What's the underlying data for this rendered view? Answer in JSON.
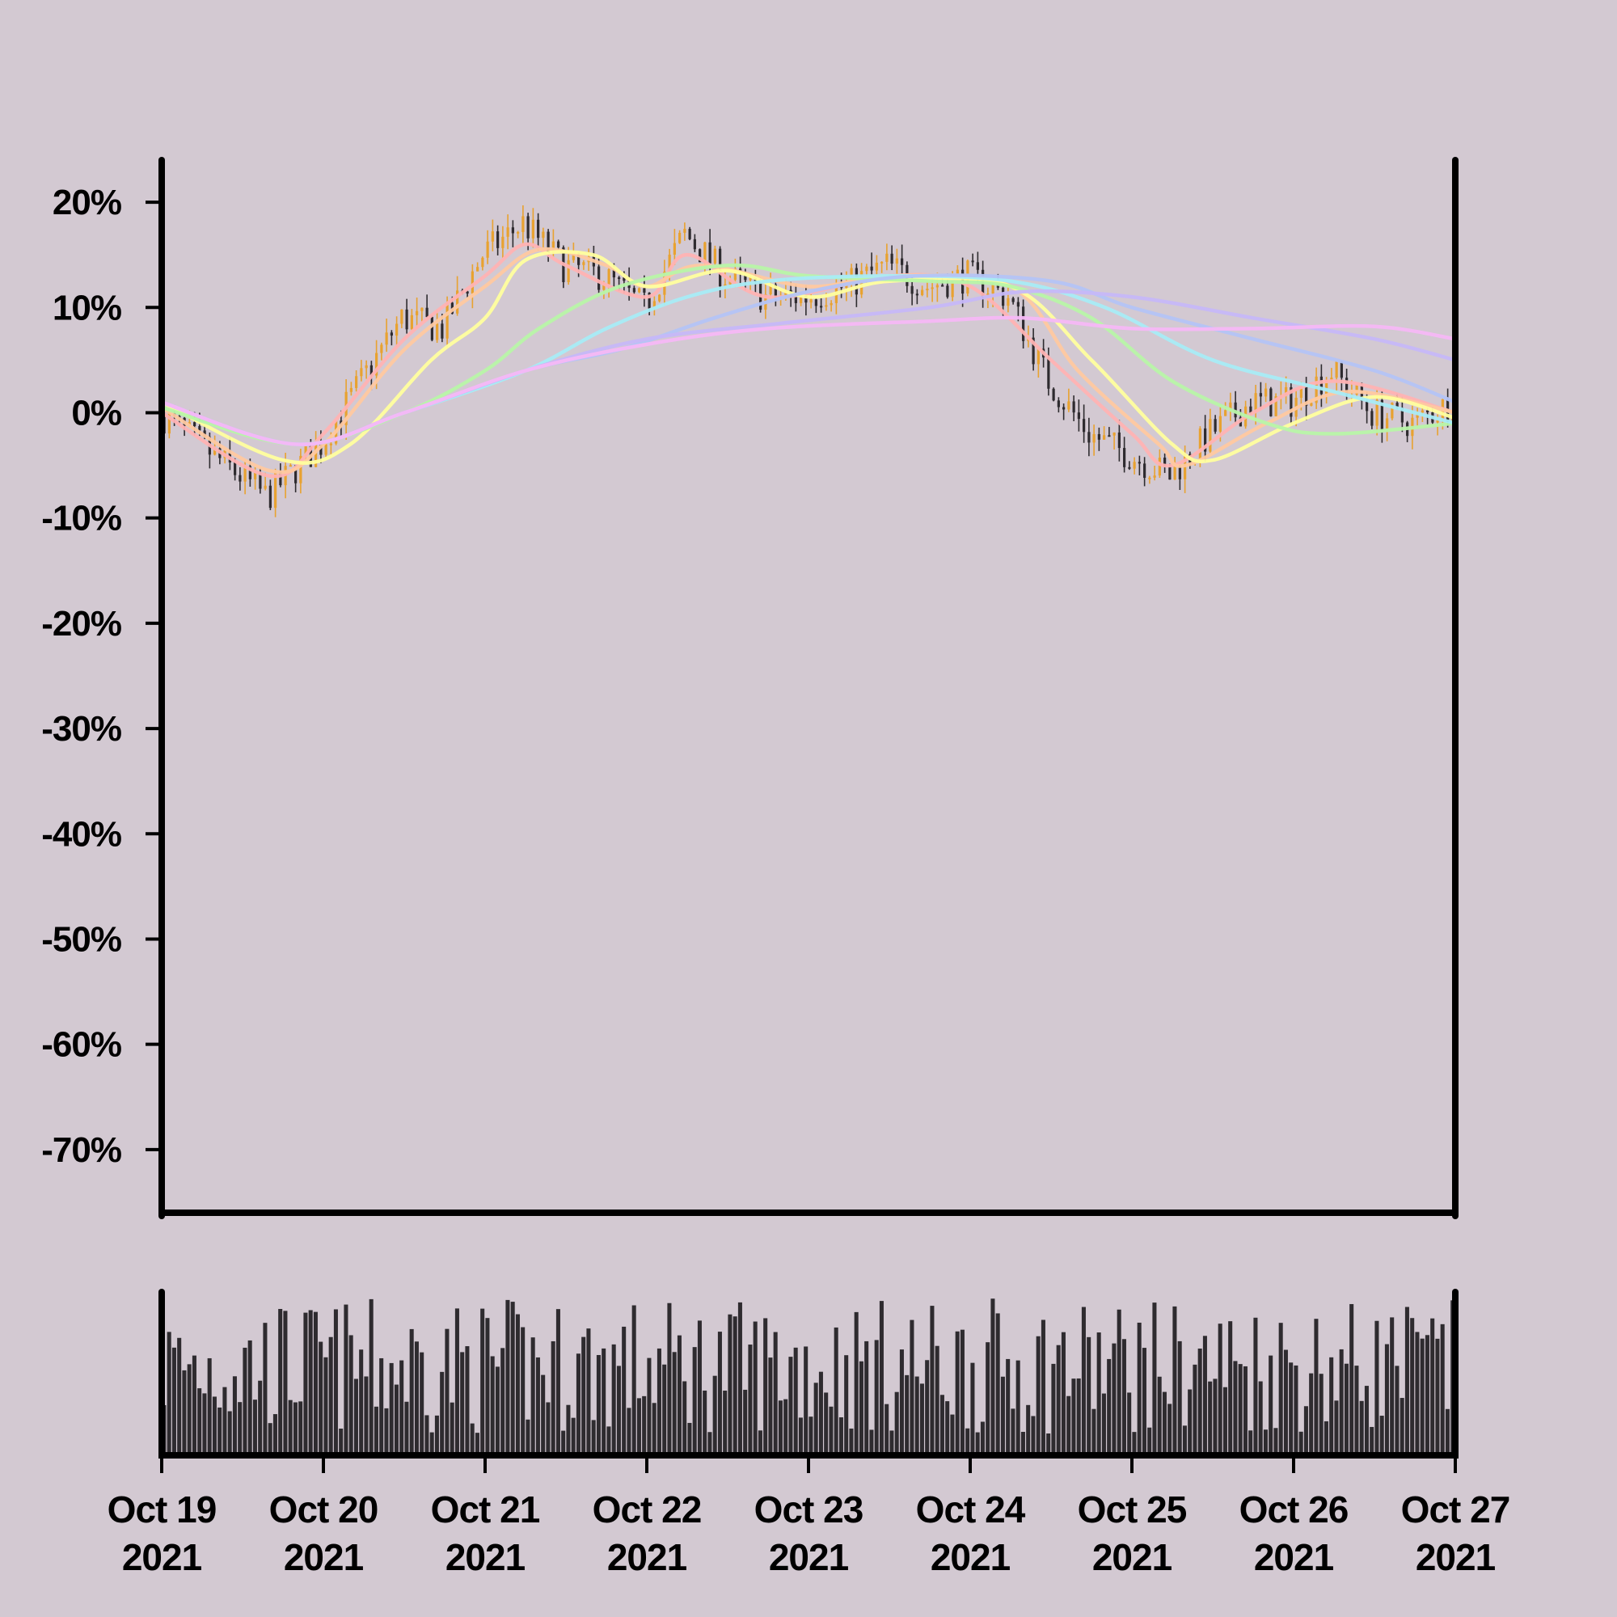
{
  "chart_data": {
    "type": "candlestick",
    "background": "#d3c9d2",
    "up_color": "#e8a230",
    "down_color": "#2e2b2f",
    "volume_color": "#2e2b2f",
    "ylim": [
      -76,
      24
    ],
    "y_ticks": [
      20,
      10,
      0,
      -10,
      -20,
      -30,
      -40,
      -50,
      -60,
      -70
    ],
    "y_tick_labels": [
      "20%",
      "10%",
      "0%",
      "-10%",
      "-20%",
      "-30%",
      "-40%",
      "-50%",
      "-60%",
      "-70%"
    ],
    "xlim": [
      "2021-10-19",
      "2021-10-27"
    ],
    "x_ticks": [
      {
        "date": "2021-10-19",
        "line1": "Oct 19",
        "line2": "2021"
      },
      {
        "date": "2021-10-20",
        "line1": "Oct 20",
        "line2": "2021"
      },
      {
        "date": "2021-10-21",
        "line1": "Oct 21",
        "line2": "2021"
      },
      {
        "date": "2021-10-22",
        "line1": "Oct 22",
        "line2": "2021"
      },
      {
        "date": "2021-10-23",
        "line1": "Oct 23",
        "line2": "2021"
      },
      {
        "date": "2021-10-24",
        "line1": "Oct 24",
        "line2": "2021"
      },
      {
        "date": "2021-10-25",
        "line1": "Oct 25",
        "line2": "2021"
      },
      {
        "date": "2021-10-26",
        "line1": "Oct 26",
        "line2": "2021"
      },
      {
        "date": "2021-10-27",
        "line1": "Oct 27",
        "line2": "2021"
      }
    ],
    "price_path": [
      [
        "2021-10-19T00:00",
        0
      ],
      [
        "2021-10-19T14:00",
        -7
      ],
      [
        "2021-10-19T16:00",
        -8
      ],
      [
        "2021-10-20T00:00",
        -3
      ],
      [
        "2021-10-20T06:00",
        3
      ],
      [
        "2021-10-20T12:00",
        9
      ],
      [
        "2021-10-20T18:00",
        8
      ],
      [
        "2021-10-21T00:00",
        15
      ],
      [
        "2021-10-21T06:00",
        18
      ],
      [
        "2021-10-21T12:00",
        14
      ],
      [
        "2021-10-21T18:00",
        13
      ],
      [
        "2021-10-22T00:00",
        10
      ],
      [
        "2021-10-22T06:00",
        17
      ],
      [
        "2021-10-22T12:00",
        13
      ],
      [
        "2021-10-22T18:00",
        11
      ],
      [
        "2021-10-23T00:00",
        11
      ],
      [
        "2021-10-23T06:00",
        12
      ],
      [
        "2021-10-23T12:00",
        14
      ],
      [
        "2021-10-23T18:00",
        12
      ],
      [
        "2021-10-24T00:00",
        13
      ],
      [
        "2021-10-24T06:00",
        11
      ],
      [
        "2021-10-24T12:00",
        3
      ],
      [
        "2021-10-24T18:00",
        -2
      ],
      [
        "2021-10-25T00:00",
        -4
      ],
      [
        "2021-10-25T06:00",
        -6
      ],
      [
        "2021-10-25T12:00",
        -2
      ],
      [
        "2021-10-25T18:00",
        1
      ],
      [
        "2021-10-26T00:00",
        1
      ],
      [
        "2021-10-26T06:00",
        4
      ],
      [
        "2021-10-26T12:00",
        0
      ],
      [
        "2021-10-26T18:00",
        -1
      ],
      [
        "2021-10-27T00:00",
        1
      ]
    ],
    "moving_averages": [
      {
        "color": "#ffb3b3",
        "opacity": 0.95,
        "points": [
          [
            "2021-10-19T00:00",
            0
          ],
          [
            "2021-10-19T16:00",
            -6
          ],
          [
            "2021-10-20T00:00",
            -2
          ],
          [
            "2021-10-20T12:00",
            7
          ],
          [
            "2021-10-21T00:00",
            13
          ],
          [
            "2021-10-21T06:00",
            16
          ],
          [
            "2021-10-21T12:00",
            14
          ],
          [
            "2021-10-22T00:00",
            11
          ],
          [
            "2021-10-22T06:00",
            15
          ],
          [
            "2021-10-22T18:00",
            11
          ],
          [
            "2021-10-23T12:00",
            13
          ],
          [
            "2021-10-24T00:00",
            12
          ],
          [
            "2021-10-24T12:00",
            5
          ],
          [
            "2021-10-25T00:00",
            -2
          ],
          [
            "2021-10-25T06:00",
            -5
          ],
          [
            "2021-10-25T18:00",
            0
          ],
          [
            "2021-10-26T06:00",
            3
          ],
          [
            "2021-10-27T00:00",
            0
          ]
        ]
      },
      {
        "color": "#ffc9a0",
        "opacity": 0.95,
        "points": [
          [
            "2021-10-19T00:00",
            0.5
          ],
          [
            "2021-10-19T16:00",
            -5.5
          ],
          [
            "2021-10-20T00:00",
            -3
          ],
          [
            "2021-10-20T12:00",
            6
          ],
          [
            "2021-10-21T00:00",
            12
          ],
          [
            "2021-10-21T08:00",
            15.5
          ],
          [
            "2021-10-21T18:00",
            14
          ],
          [
            "2021-10-22T00:00",
            12
          ],
          [
            "2021-10-22T08:00",
            14
          ],
          [
            "2021-10-23T00:00",
            12
          ],
          [
            "2021-10-23T12:00",
            13
          ],
          [
            "2021-10-24T06:00",
            12
          ],
          [
            "2021-10-24T16:00",
            4
          ],
          [
            "2021-10-25T04:00",
            -3
          ],
          [
            "2021-10-25T08:00",
            -5
          ],
          [
            "2021-10-25T20:00",
            -1
          ],
          [
            "2021-10-26T08:00",
            2
          ],
          [
            "2021-10-27T00:00",
            0
          ]
        ]
      },
      {
        "color": "#ffff9e",
        "opacity": 0.95,
        "points": [
          [
            "2021-10-19T00:00",
            1
          ],
          [
            "2021-10-19T18:00",
            -4.5
          ],
          [
            "2021-10-20T04:00",
            -3
          ],
          [
            "2021-10-20T16:00",
            5
          ],
          [
            "2021-10-21T00:00",
            9
          ],
          [
            "2021-10-21T06:00",
            14.5
          ],
          [
            "2021-10-21T16:00",
            15
          ],
          [
            "2021-10-22T00:00",
            12
          ],
          [
            "2021-10-22T12:00",
            13.5
          ],
          [
            "2021-10-23T00:00",
            11
          ],
          [
            "2021-10-23T12:00",
            12.5
          ],
          [
            "2021-10-24T06:00",
            12
          ],
          [
            "2021-10-24T18:00",
            5
          ],
          [
            "2021-10-25T06:00",
            -3
          ],
          [
            "2021-10-25T12:00",
            -4.5
          ],
          [
            "2021-10-26T00:00",
            -1
          ],
          [
            "2021-10-26T12:00",
            1.5
          ],
          [
            "2021-10-27T00:00",
            -0.5
          ]
        ]
      },
      {
        "color": "#b8f5a8",
        "opacity": 0.95,
        "points": [
          [
            "2021-10-19T00:00",
            0.5
          ],
          [
            "2021-10-19T20:00",
            -3
          ],
          [
            "2021-10-20T12:00",
            0
          ],
          [
            "2021-10-21T00:00",
            4
          ],
          [
            "2021-10-21T08:00",
            8
          ],
          [
            "2021-10-21T20:00",
            12
          ],
          [
            "2021-10-22T12:00",
            14
          ],
          [
            "2021-10-23T00:00",
            13
          ],
          [
            "2021-10-23T18:00",
            12.5
          ],
          [
            "2021-10-24T06:00",
            12
          ],
          [
            "2021-10-24T18:00",
            9
          ],
          [
            "2021-10-25T06:00",
            3
          ],
          [
            "2021-10-25T20:00",
            -1
          ],
          [
            "2021-10-26T06:00",
            -2
          ],
          [
            "2021-10-27T00:00",
            -1
          ]
        ]
      },
      {
        "color": "#a8ecf5",
        "opacity": 0.95,
        "points": [
          [
            "2021-10-19T00:00",
            1
          ],
          [
            "2021-10-19T20:00",
            -3
          ],
          [
            "2021-10-20T12:00",
            0
          ],
          [
            "2021-10-21T06:00",
            4
          ],
          [
            "2021-10-21T18:00",
            8
          ],
          [
            "2021-10-22T06:00",
            11
          ],
          [
            "2021-10-22T18:00",
            12.5
          ],
          [
            "2021-10-23T12:00",
            13
          ],
          [
            "2021-10-24T06:00",
            12.5
          ],
          [
            "2021-10-24T20:00",
            10
          ],
          [
            "2021-10-25T12:00",
            5
          ],
          [
            "2021-10-26T06:00",
            2
          ],
          [
            "2021-10-27T00:00",
            -1
          ]
        ]
      },
      {
        "color": "#b4c4f5",
        "opacity": 0.95,
        "points": [
          [
            "2021-10-19T00:00",
            1
          ],
          [
            "2021-10-19T20:00",
            -3
          ],
          [
            "2021-10-20T12:00",
            0
          ],
          [
            "2021-10-21T06:00",
            4
          ],
          [
            "2021-10-21T20:00",
            6
          ],
          [
            "2021-10-22T10:00",
            9
          ],
          [
            "2021-10-23T00:00",
            11.5
          ],
          [
            "2021-10-23T16:00",
            13
          ],
          [
            "2021-10-24T12:00",
            12.5
          ],
          [
            "2021-10-25T00:00",
            10
          ],
          [
            "2021-10-25T18:00",
            7
          ],
          [
            "2021-10-26T12:00",
            4
          ],
          [
            "2021-10-27T00:00",
            1
          ]
        ]
      },
      {
        "color": "#c6b8f8",
        "opacity": 0.95,
        "points": [
          [
            "2021-10-19T00:00",
            1
          ],
          [
            "2021-10-19T20:00",
            -3
          ],
          [
            "2021-10-20T12:00",
            0
          ],
          [
            "2021-10-21T06:00",
            4
          ],
          [
            "2021-10-22T00:00",
            7
          ],
          [
            "2021-10-22T20:00",
            8.5
          ],
          [
            "2021-10-23T18:00",
            10
          ],
          [
            "2021-10-24T08:00",
            11.5
          ],
          [
            "2021-10-25T00:00",
            11
          ],
          [
            "2021-10-25T18:00",
            9
          ],
          [
            "2021-10-26T12:00",
            7
          ],
          [
            "2021-10-27T00:00",
            5
          ]
        ]
      },
      {
        "color": "#f5b8f5",
        "opacity": 0.95,
        "points": [
          [
            "2021-10-19T00:00",
            1
          ],
          [
            "2021-10-19T20:00",
            -3
          ],
          [
            "2021-10-20T12:00",
            0
          ],
          [
            "2021-10-21T06:00",
            4
          ],
          [
            "2021-10-22T00:00",
            6.5
          ],
          [
            "2021-10-22T18:00",
            8
          ],
          [
            "2021-10-23T18:00",
            8.7
          ],
          [
            "2021-10-24T08:00",
            9
          ],
          [
            "2021-10-25T00:00",
            8
          ],
          [
            "2021-10-25T18:00",
            8
          ],
          [
            "2021-10-26T12:00",
            8.2
          ],
          [
            "2021-10-27T00:00",
            7
          ]
        ]
      }
    ]
  }
}
